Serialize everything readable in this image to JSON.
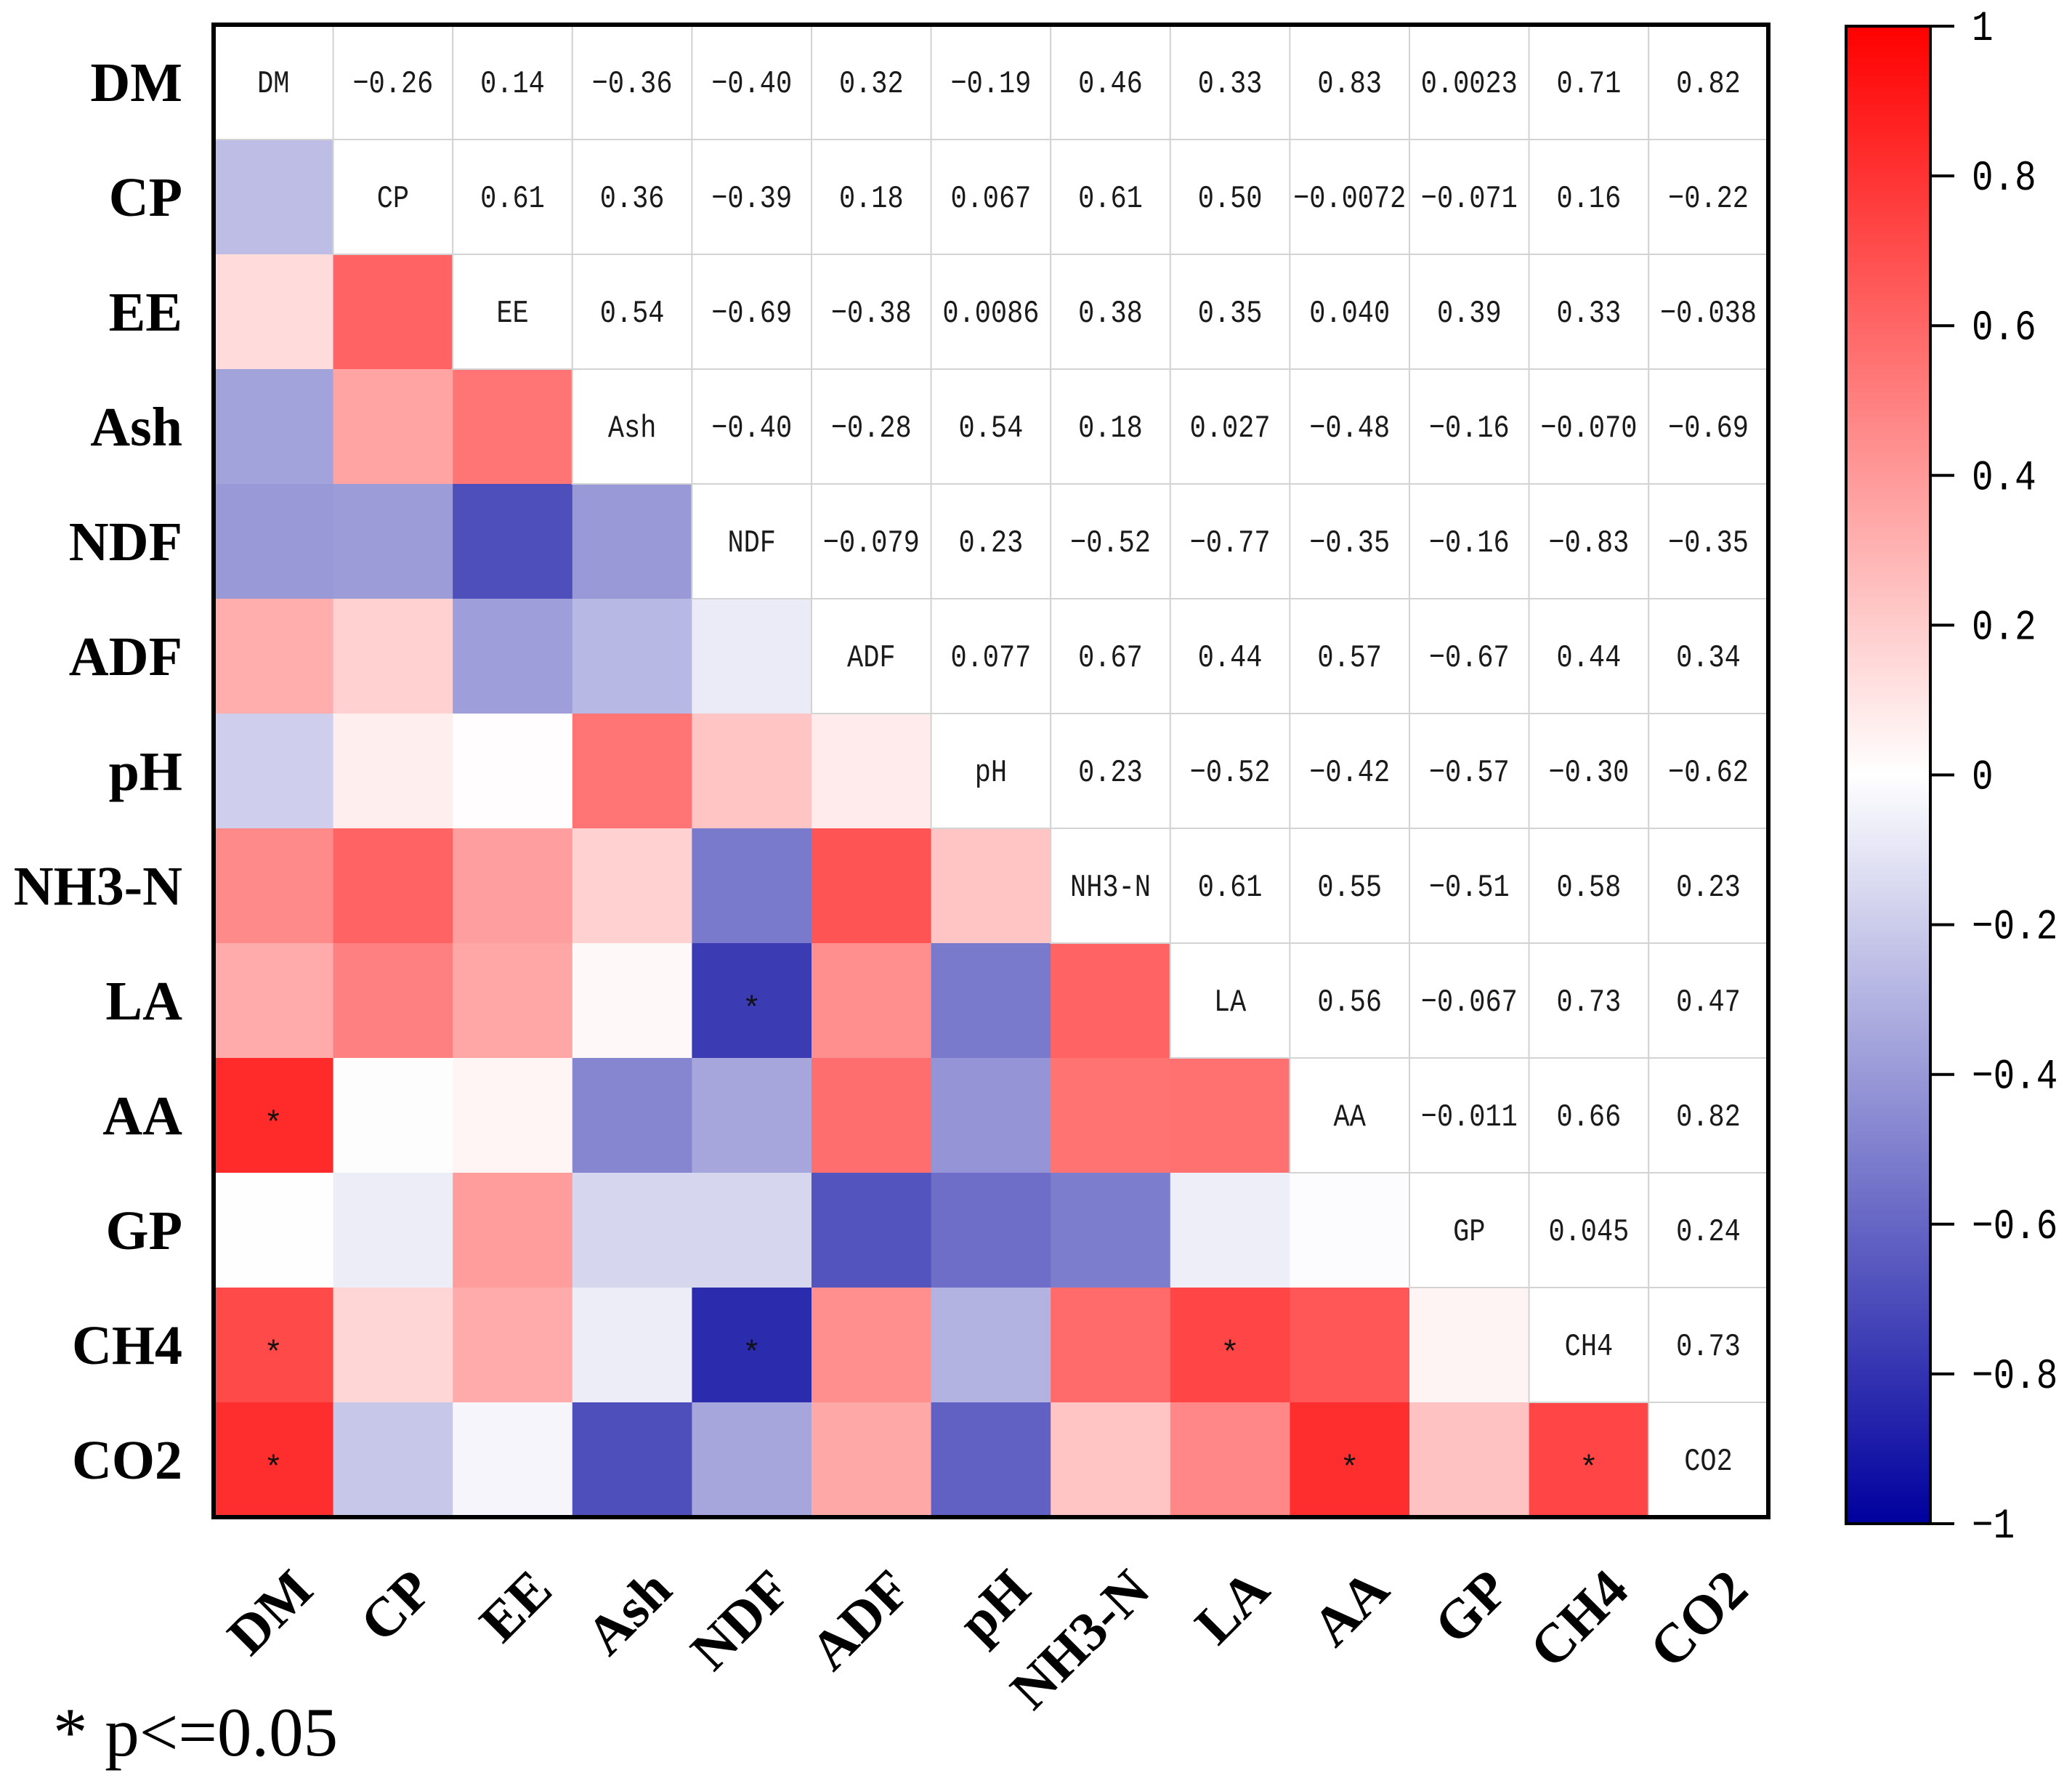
{
  "chart_data": {
    "type": "heatmap",
    "variables": [
      "DM",
      "CP",
      "EE",
      "Ash",
      "NDF",
      "ADF",
      "pH",
      "NH3-N",
      "LA",
      "AA",
      "GP",
      "CH4",
      "CO2"
    ],
    "upper_triangle_values": [
      [
        "−0.26",
        "0.14",
        "−0.36",
        "−0.40",
        "0.32",
        "−0.19",
        "0.46",
        "0.33",
        "0.83",
        "0.0023",
        "0.71",
        "0.82"
      ],
      [
        "0.61",
        "0.36",
        "−0.39",
        "0.18",
        "0.067",
        "0.61",
        "0.50",
        "−0.0072",
        "−0.071",
        "0.16",
        "−0.22"
      ],
      [
        "0.54",
        "−0.69",
        "−0.38",
        "0.0086",
        "0.38",
        "0.35",
        "0.040",
        "0.39",
        "0.33",
        "−0.038"
      ],
      [
        "−0.40",
        "−0.28",
        "0.54",
        "0.18",
        "0.027",
        "−0.48",
        "−0.16",
        "−0.070",
        "−0.69"
      ],
      [
        "−0.079",
        "0.23",
        "−0.52",
        "−0.77",
        "−0.35",
        "−0.16",
        "−0.83",
        "−0.35"
      ],
      [
        "0.077",
        "0.67",
        "0.44",
        "0.57",
        "−0.67",
        "0.44",
        "0.34"
      ],
      [
        "0.23",
        "−0.52",
        "−0.42",
        "−0.57",
        "−0.30",
        "−0.62"
      ],
      [
        "0.61",
        "0.55",
        "−0.51",
        "0.58",
        "0.23"
      ],
      [
        "0.56",
        "−0.067",
        "0.73",
        "0.47"
      ],
      [
        "−0.011",
        "0.66",
        "0.82"
      ],
      [
        "0.045",
        "0.24"
      ],
      [
        "0.73"
      ]
    ],
    "lower_triangle": "color-coded, symmetric to upper triangle values",
    "significant_cells": [
      [
        "LA",
        "NDF"
      ],
      [
        "AA",
        "DM"
      ],
      [
        "CH4",
        "DM"
      ],
      [
        "CH4",
        "NDF"
      ],
      [
        "CH4",
        "LA"
      ],
      [
        "CO2",
        "DM"
      ],
      [
        "CO2",
        "AA"
      ],
      [
        "CO2",
        "CH4"
      ]
    ],
    "significance_mark": "*",
    "colorbar": {
      "range": [
        -1,
        1
      ],
      "ticks": [
        "1",
        "0.8",
        "0.6",
        "0.4",
        "0.2",
        "0",
        "−0.2",
        "−0.4",
        "−0.6",
        "−0.8",
        "−1"
      ],
      "position": "right"
    },
    "colormap": {
      "positive": "#FF0000",
      "zero": "#FFFFFF",
      "negative": "#00009E",
      "grid_line": "#D3D3D3"
    },
    "footnote": "* p<=0.05"
  }
}
